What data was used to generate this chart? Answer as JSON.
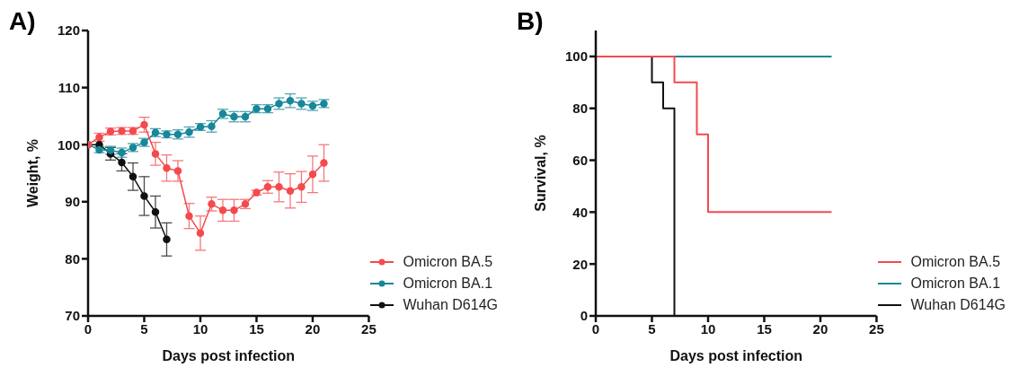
{
  "chart_data": [
    {
      "type": "line",
      "title": "A)",
      "xlabel": "Days post infection",
      "ylabel": "Weight, %",
      "xlim": [
        0,
        25
      ],
      "xticks": [
        0,
        5,
        10,
        15,
        20,
        25
      ],
      "ylim": [
        70,
        120
      ],
      "yticks": [
        70,
        80,
        90,
        100,
        110,
        120
      ],
      "marker": "circle",
      "legend": "bottom right",
      "grid": false,
      "series": [
        {
          "name": "Omicron BA.5",
          "color": "#f44a4e",
          "x": [
            0,
            1,
            2,
            3,
            4,
            5,
            6,
            7,
            8,
            9,
            10,
            11,
            12,
            13,
            14,
            15,
            16,
            17,
            18,
            19,
            20,
            21
          ],
          "values": [
            100,
            101.3,
            102.3,
            102.4,
            102.4,
            103.5,
            98.4,
            95.9,
            95.4,
            87.5,
            84.5,
            89.6,
            88.5,
            88.5,
            89.6,
            91.6,
            92.6,
            92.6,
            91.9,
            92.6,
            94.8,
            96.8
          ],
          "errors": [
            0,
            0.7,
            0.6,
            0.6,
            0.6,
            1.3,
            2,
            2.3,
            1.8,
            2.2,
            3,
            1.2,
            1.9,
            1.9,
            0.8,
            0.4,
            1.1,
            2.6,
            3,
            2.7,
            3.2,
            3.2
          ]
        },
        {
          "name": "Omicron BA.1",
          "color": "#17879a",
          "x": [
            0,
            1,
            2,
            3,
            4,
            5,
            6,
            7,
            8,
            9,
            10,
            11,
            12,
            13,
            14,
            15,
            16,
            17,
            18,
            19,
            20,
            21
          ],
          "values": [
            100,
            99.1,
            99,
            98.6,
            99.5,
            100.4,
            102.1,
            101.8,
            101.8,
            102.2,
            103.1,
            103.2,
            105.4,
            104.9,
            104.9,
            106.3,
            106.3,
            107.2,
            107.7,
            107.2,
            106.8,
            107.2
          ],
          "errors": [
            0,
            0.5,
            0.7,
            0.8,
            0.7,
            0.7,
            0.7,
            0.6,
            0.8,
            0.9,
            0.6,
            1,
            0.8,
            0.9,
            0.9,
            0.7,
            0.7,
            1,
            1.2,
            1,
            0.8,
            0.7
          ]
        },
        {
          "name": "Wuhan D614G",
          "color": "#111111",
          "x": [
            0,
            1,
            2,
            3,
            4,
            5,
            6,
            7
          ],
          "values": [
            100,
            100,
            98.4,
            96.9,
            94.4,
            91,
            88.2,
            83.4
          ],
          "errors": [
            0,
            0,
            1.1,
            1.5,
            2.4,
            3.4,
            2.8,
            2.9
          ]
        }
      ]
    },
    {
      "type": "step",
      "title": "B)",
      "xlabel": "Days post infection",
      "ylabel": "Survival, %",
      "xlim": [
        0,
        25
      ],
      "xticks": [
        0,
        5,
        10,
        15,
        20,
        25
      ],
      "ylim": [
        0,
        110
      ],
      "yticks": [
        0,
        20,
        40,
        60,
        80,
        100
      ],
      "legend": "bottom right",
      "grid": false,
      "series": [
        {
          "name": "Omicron BA.5",
          "color": "#f44a4e",
          "x": [
            0,
            7,
            9,
            10,
            21
          ],
          "values": [
            100,
            90,
            70,
            40,
            40
          ]
        },
        {
          "name": "Omicron BA.1",
          "color": "#17879a",
          "x": [
            0,
            21
          ],
          "values": [
            100,
            100
          ]
        },
        {
          "name": "Wuhan D614G",
          "color": "#111111",
          "x": [
            0,
            5,
            6,
            7
          ],
          "values": [
            100,
            90,
            80,
            0
          ]
        }
      ]
    }
  ]
}
